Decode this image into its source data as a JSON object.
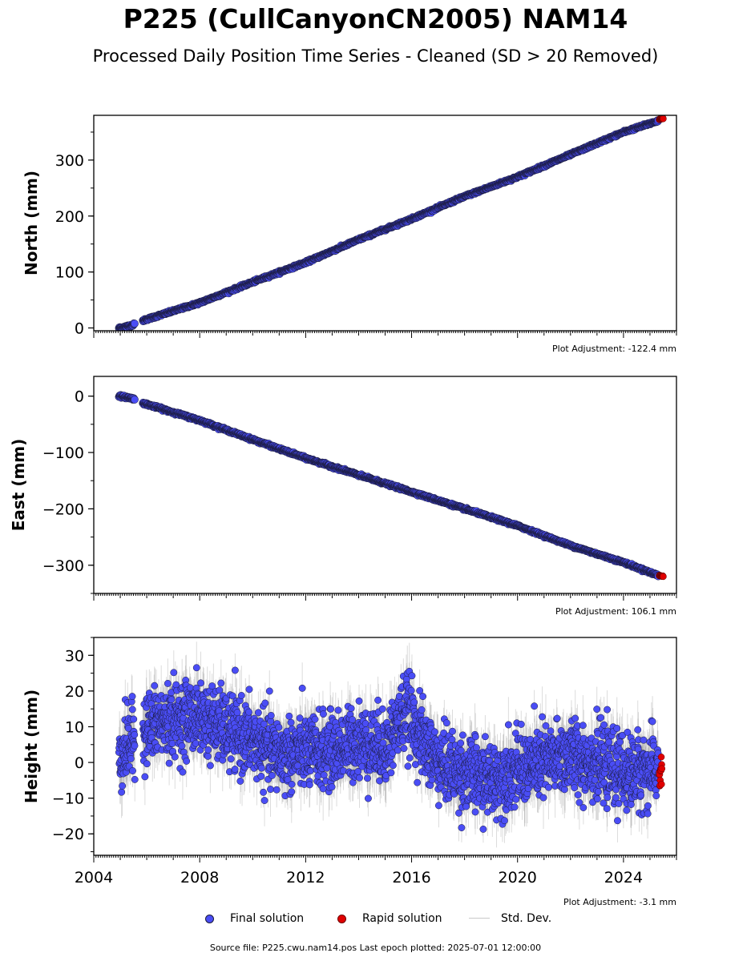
{
  "title": "P225 (CullCanyonCN2005) NAM14",
  "subtitle": "Processed Daily Position Time Series - Cleaned (SD > 20 Removed)",
  "source_text": "Source file: P225.cwu.nam14.pos  Last epoch plotted: 2025-07-01 12:00:00",
  "legend": {
    "final_label": "Final solution",
    "rapid_label": "Rapid solution",
    "std_label": "Std. Dev."
  },
  "colors": {
    "final": "#4a4df5",
    "final_edge": "#1a1a3a",
    "rapid": "#e00000",
    "std": "#9a9a9a"
  },
  "chart_data": [
    {
      "type": "scatter",
      "ylabel": "North (mm)",
      "adjustment": "Plot Adjustment: -122.4 mm",
      "xlim": [
        2004.0,
        2026.0
      ],
      "ylim": [
        -5,
        380
      ],
      "yticks": [
        0,
        100,
        200,
        300
      ],
      "ytick_labels": [
        "0",
        "100",
        "200",
        "300"
      ],
      "show_x_labels": false,
      "series": [
        {
          "name": "Final solution",
          "points": [
            [
              2005.0,
              0
            ],
            [
              2005.45,
              5
            ],
            [
              2005.9,
              14
            ],
            [
              2008,
              45
            ],
            [
              2010,
              82
            ],
            [
              2012,
              117
            ],
            [
              2014,
              158
            ],
            [
              2016,
              195
            ],
            [
              2018,
              235
            ],
            [
              2020,
              270
            ],
            [
              2022,
              310
            ],
            [
              2024,
              350
            ],
            [
              2025.3,
              370
            ]
          ]
        },
        {
          "name": "Rapid solution",
          "points": [
            [
              2025.35,
              373
            ],
            [
              2025.5,
              375
            ]
          ]
        }
      ]
    },
    {
      "type": "scatter",
      "ylabel": "East (mm)",
      "adjustment": "Plot Adjustment: 106.1 mm",
      "xlim": [
        2004.0,
        2026.0
      ],
      "ylim": [
        -350,
        35
      ],
      "yticks": [
        0,
        -100,
        -200,
        -300
      ],
      "ytick_labels": [
        "0",
        "−100",
        "−200",
        "−300"
      ],
      "show_x_labels": false,
      "series": [
        {
          "name": "Final solution",
          "points": [
            [
              2005.0,
              0
            ],
            [
              2005.45,
              -4
            ],
            [
              2005.9,
              -13
            ],
            [
              2008,
              -43
            ],
            [
              2010,
              -77
            ],
            [
              2012,
              -110
            ],
            [
              2014,
              -140
            ],
            [
              2016,
              -170
            ],
            [
              2018,
              -200
            ],
            [
              2020,
              -230
            ],
            [
              2022,
              -265
            ],
            [
              2024,
              -295
            ],
            [
              2025.3,
              -318
            ]
          ]
        },
        {
          "name": "Rapid solution",
          "points": [
            [
              2025.35,
              -318
            ],
            [
              2025.5,
              -320
            ]
          ]
        }
      ]
    },
    {
      "type": "scatter",
      "ylabel": "Height (mm)",
      "adjustment": "Plot Adjustment: -3.1 mm",
      "xlim": [
        2004.0,
        2026.0
      ],
      "ylim": [
        -26,
        35
      ],
      "yticks": [
        -20,
        -10,
        0,
        10,
        20,
        30
      ],
      "ytick_labels": [
        "−20",
        "−10",
        "0",
        "10",
        "20",
        "30"
      ],
      "show_x_labels": true,
      "xticks": [
        2004,
        2008,
        2012,
        2016,
        2020,
        2024
      ],
      "xtick_labels": [
        "2004",
        "2008",
        "2012",
        "2016",
        "2020",
        "2024"
      ],
      "series": [
        {
          "name": "Final solution",
          "points": [
            [
              2005.0,
              2
            ],
            [
              2005.3,
              5
            ],
            [
              2006.0,
              10
            ],
            [
              2007,
              12
            ],
            [
              2008,
              13
            ],
            [
              2009,
              9
            ],
            [
              2010,
              6
            ],
            [
              2011,
              2
            ],
            [
              2012,
              3
            ],
            [
              2013,
              3
            ],
            [
              2014,
              6
            ],
            [
              2015,
              4
            ],
            [
              2015.8,
              15
            ],
            [
              2016.5,
              5
            ],
            [
              2017,
              0
            ],
            [
              2018,
              -3
            ],
            [
              2019,
              -5
            ],
            [
              2020,
              -2
            ],
            [
              2021,
              0
            ],
            [
              2022,
              2
            ],
            [
              2023,
              0
            ],
            [
              2024,
              -3
            ],
            [
              2025.3,
              -2
            ]
          ]
        },
        {
          "name": "Rapid solution",
          "points": [
            [
              2025.35,
              2
            ],
            [
              2025.45,
              -4
            ]
          ]
        }
      ]
    }
  ]
}
